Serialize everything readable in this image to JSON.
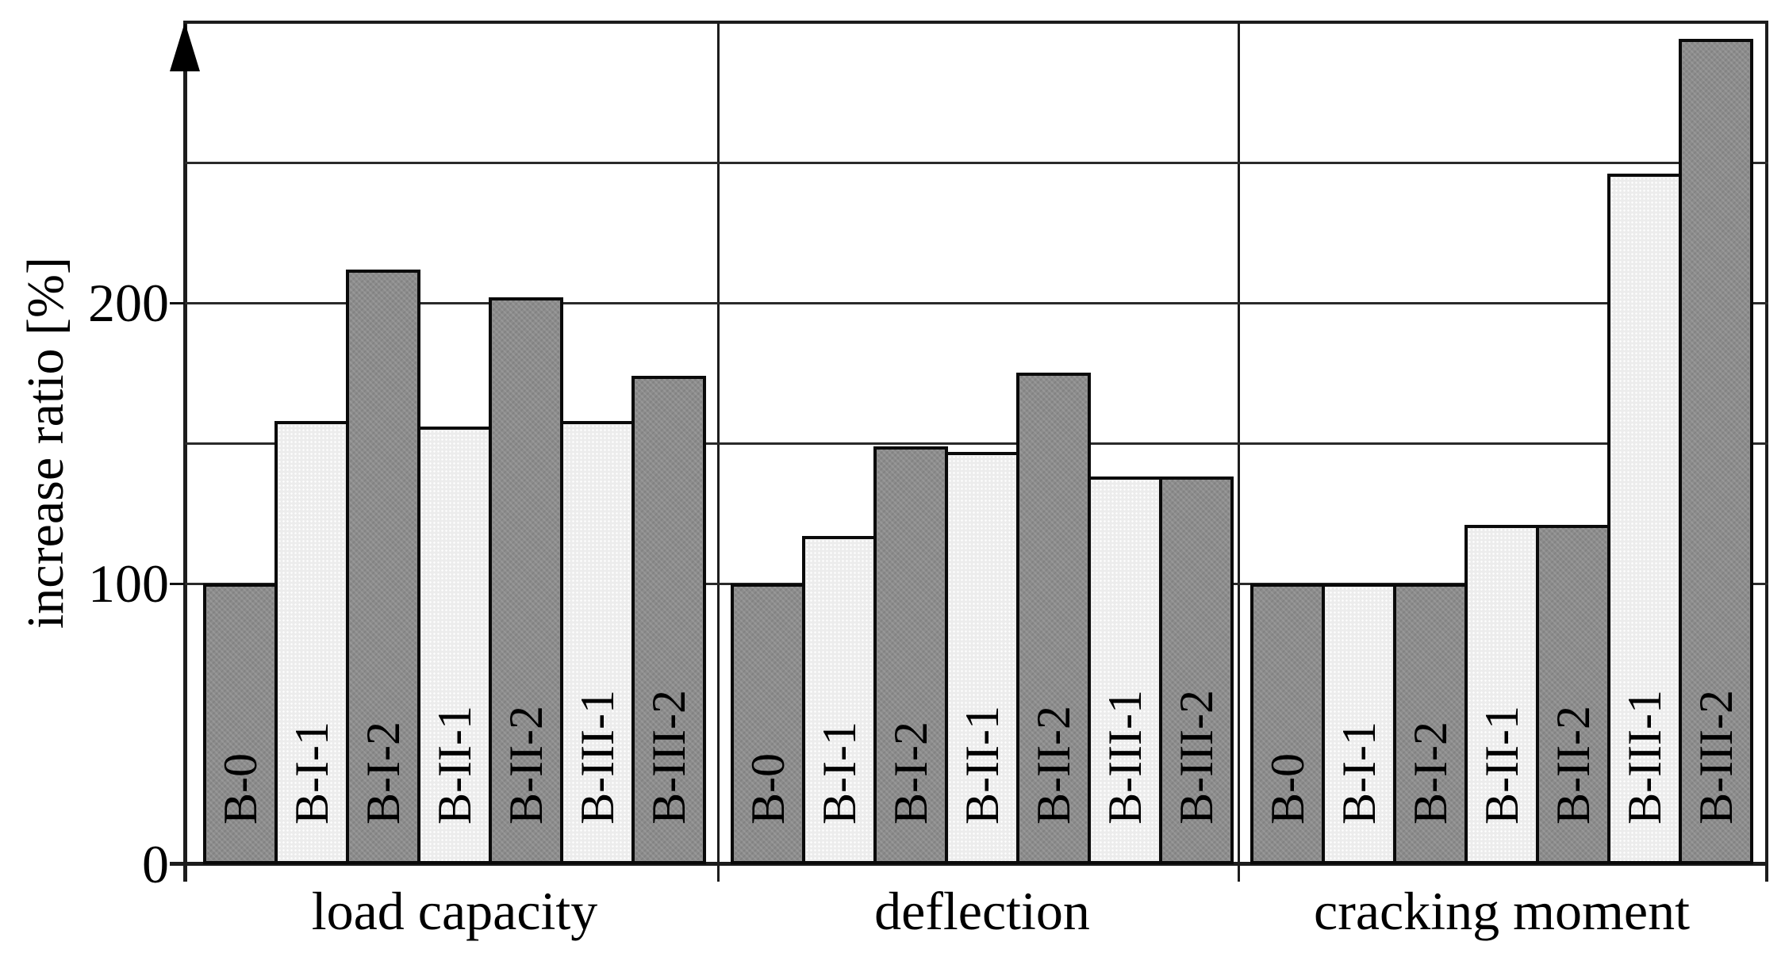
{
  "chart_data": {
    "type": "bar",
    "title": "",
    "ylabel": "increase ratio [%]",
    "ylim": [
      0,
      300
    ],
    "yticks": [
      {
        "value": 0,
        "label": "0"
      },
      {
        "value": 100,
        "label": "100"
      },
      {
        "value": 200,
        "label": "200"
      }
    ],
    "gridline_values": [
      100,
      150,
      200,
      250
    ],
    "grid": "horizontal lines at every 50 units, plot framed top/right, vertical separators between groups",
    "categories": [
      "B-0",
      "B-I-1",
      "B-I-2",
      "B-II-1",
      "B-II-2",
      "B-III-1",
      "B-III-2"
    ],
    "groups": [
      {
        "label": "load capacity",
        "values": [
          100,
          158,
          212,
          156,
          202,
          158,
          174
        ]
      },
      {
        "label": "deflection",
        "values": [
          100,
          117,
          149,
          147,
          175,
          138,
          138
        ]
      },
      {
        "label": "cracking moment",
        "values": [
          100,
          100,
          100,
          121,
          121,
          246,
          294
        ]
      }
    ],
    "bar_fill_order": [
      "dark",
      "light",
      "dark",
      "light",
      "dark",
      "light",
      "dark"
    ],
    "colors": {
      "bar_dark": "#8c8c8c",
      "bar_light": "#ececec",
      "line": "#000000",
      "background": "#ffffff"
    },
    "legend_position": "none"
  }
}
